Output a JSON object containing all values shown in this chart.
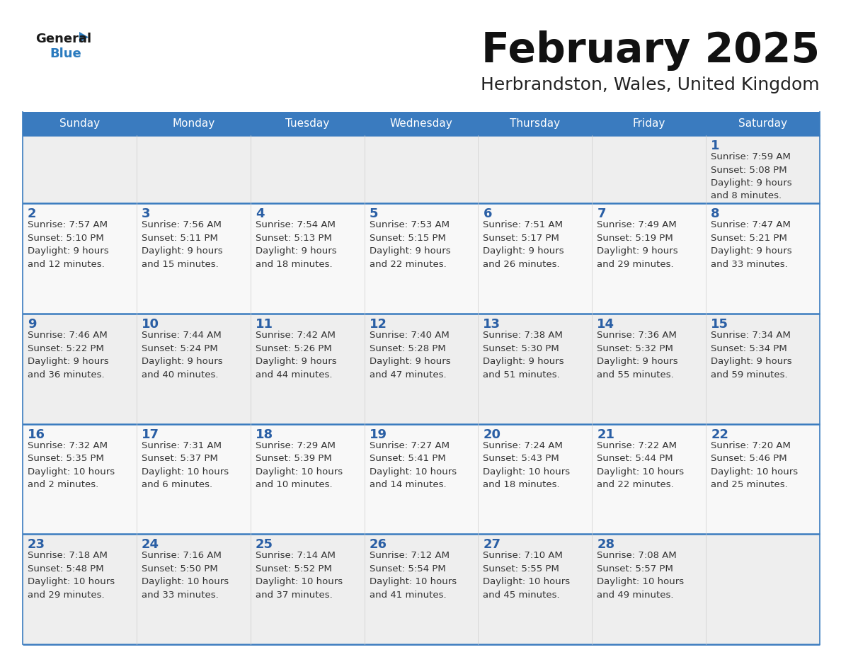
{
  "title": "February 2025",
  "subtitle": "Herbrandston, Wales, United Kingdom",
  "header_bg": "#3a7bbf",
  "header_text": "#ffffff",
  "cell_bg_odd": "#eeeeee",
  "cell_bg_even": "#f8f8f8",
  "day_number_color": "#2a5fa5",
  "text_color": "#333333",
  "line_color": "#3a7bbf",
  "days_of_week": [
    "Sunday",
    "Monday",
    "Tuesday",
    "Wednesday",
    "Thursday",
    "Friday",
    "Saturday"
  ],
  "weeks": [
    [
      {
        "day": null,
        "info": null
      },
      {
        "day": null,
        "info": null
      },
      {
        "day": null,
        "info": null
      },
      {
        "day": null,
        "info": null
      },
      {
        "day": null,
        "info": null
      },
      {
        "day": null,
        "info": null
      },
      {
        "day": 1,
        "info": "Sunrise: 7:59 AM\nSunset: 5:08 PM\nDaylight: 9 hours\nand 8 minutes."
      }
    ],
    [
      {
        "day": 2,
        "info": "Sunrise: 7:57 AM\nSunset: 5:10 PM\nDaylight: 9 hours\nand 12 minutes."
      },
      {
        "day": 3,
        "info": "Sunrise: 7:56 AM\nSunset: 5:11 PM\nDaylight: 9 hours\nand 15 minutes."
      },
      {
        "day": 4,
        "info": "Sunrise: 7:54 AM\nSunset: 5:13 PM\nDaylight: 9 hours\nand 18 minutes."
      },
      {
        "day": 5,
        "info": "Sunrise: 7:53 AM\nSunset: 5:15 PM\nDaylight: 9 hours\nand 22 minutes."
      },
      {
        "day": 6,
        "info": "Sunrise: 7:51 AM\nSunset: 5:17 PM\nDaylight: 9 hours\nand 26 minutes."
      },
      {
        "day": 7,
        "info": "Sunrise: 7:49 AM\nSunset: 5:19 PM\nDaylight: 9 hours\nand 29 minutes."
      },
      {
        "day": 8,
        "info": "Sunrise: 7:47 AM\nSunset: 5:21 PM\nDaylight: 9 hours\nand 33 minutes."
      }
    ],
    [
      {
        "day": 9,
        "info": "Sunrise: 7:46 AM\nSunset: 5:22 PM\nDaylight: 9 hours\nand 36 minutes."
      },
      {
        "day": 10,
        "info": "Sunrise: 7:44 AM\nSunset: 5:24 PM\nDaylight: 9 hours\nand 40 minutes."
      },
      {
        "day": 11,
        "info": "Sunrise: 7:42 AM\nSunset: 5:26 PM\nDaylight: 9 hours\nand 44 minutes."
      },
      {
        "day": 12,
        "info": "Sunrise: 7:40 AM\nSunset: 5:28 PM\nDaylight: 9 hours\nand 47 minutes."
      },
      {
        "day": 13,
        "info": "Sunrise: 7:38 AM\nSunset: 5:30 PM\nDaylight: 9 hours\nand 51 minutes."
      },
      {
        "day": 14,
        "info": "Sunrise: 7:36 AM\nSunset: 5:32 PM\nDaylight: 9 hours\nand 55 minutes."
      },
      {
        "day": 15,
        "info": "Sunrise: 7:34 AM\nSunset: 5:34 PM\nDaylight: 9 hours\nand 59 minutes."
      }
    ],
    [
      {
        "day": 16,
        "info": "Sunrise: 7:32 AM\nSunset: 5:35 PM\nDaylight: 10 hours\nand 2 minutes."
      },
      {
        "day": 17,
        "info": "Sunrise: 7:31 AM\nSunset: 5:37 PM\nDaylight: 10 hours\nand 6 minutes."
      },
      {
        "day": 18,
        "info": "Sunrise: 7:29 AM\nSunset: 5:39 PM\nDaylight: 10 hours\nand 10 minutes."
      },
      {
        "day": 19,
        "info": "Sunrise: 7:27 AM\nSunset: 5:41 PM\nDaylight: 10 hours\nand 14 minutes."
      },
      {
        "day": 20,
        "info": "Sunrise: 7:24 AM\nSunset: 5:43 PM\nDaylight: 10 hours\nand 18 minutes."
      },
      {
        "day": 21,
        "info": "Sunrise: 7:22 AM\nSunset: 5:44 PM\nDaylight: 10 hours\nand 22 minutes."
      },
      {
        "day": 22,
        "info": "Sunrise: 7:20 AM\nSunset: 5:46 PM\nDaylight: 10 hours\nand 25 minutes."
      }
    ],
    [
      {
        "day": 23,
        "info": "Sunrise: 7:18 AM\nSunset: 5:48 PM\nDaylight: 10 hours\nand 29 minutes."
      },
      {
        "day": 24,
        "info": "Sunrise: 7:16 AM\nSunset: 5:50 PM\nDaylight: 10 hours\nand 33 minutes."
      },
      {
        "day": 25,
        "info": "Sunrise: 7:14 AM\nSunset: 5:52 PM\nDaylight: 10 hours\nand 37 minutes."
      },
      {
        "day": 26,
        "info": "Sunrise: 7:12 AM\nSunset: 5:54 PM\nDaylight: 10 hours\nand 41 minutes."
      },
      {
        "day": 27,
        "info": "Sunrise: 7:10 AM\nSunset: 5:55 PM\nDaylight: 10 hours\nand 45 minutes."
      },
      {
        "day": 28,
        "info": "Sunrise: 7:08 AM\nSunset: 5:57 PM\nDaylight: 10 hours\nand 49 minutes."
      },
      {
        "day": null,
        "info": null
      }
    ]
  ],
  "logo_text_general": "General",
  "logo_text_blue": "Blue",
  "logo_color_general": "#1a1a1a",
  "logo_color_blue": "#2a7bbf",
  "logo_triangle_color": "#2a7bbf",
  "title_fontsize": 42,
  "subtitle_fontsize": 18,
  "header_fontsize": 11,
  "day_num_fontsize": 13,
  "cell_text_fontsize": 9.5
}
